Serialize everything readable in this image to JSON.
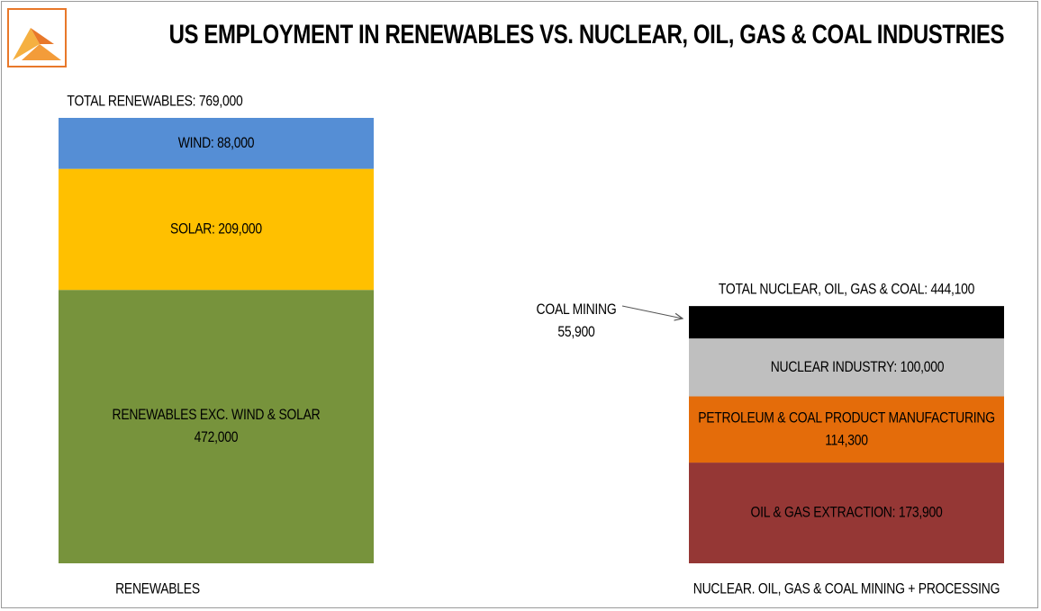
{
  "title": "US EMPLOYMENT IN RENEWABLES VS. NUCLEAR, OIL, GAS & COAL INDUSTRIES",
  "chart_data": {
    "type": "bar",
    "stacked": true,
    "categories": [
      "RENEWABLES",
      "NUCLEAR. OIL, GAS & COAL MINING + PROCESSING"
    ],
    "totals": [
      {
        "label": "TOTAL RENEWABLES:  769,000",
        "value": 769000
      },
      {
        "label": "TOTAL NUCLEAR, OIL, GAS & COAL: 444,100",
        "value": 444100
      }
    ],
    "ylim": [
      0,
      769000
    ],
    "grid": false,
    "legend": "none",
    "stacks": [
      {
        "category": "RENEWABLES",
        "segments": [
          {
            "label": [
              "RENEWABLES EXC. WIND & SOLAR",
              "472,000"
            ],
            "value": 472000,
            "color": "#77933c"
          },
          {
            "label": [
              "SOLAR: 209,000"
            ],
            "value": 209000,
            "color": "#ffc000"
          },
          {
            "label": [
              "WIND: 88,000"
            ],
            "value": 88000,
            "color": "#558ed5"
          }
        ]
      },
      {
        "category": "NUCLEAR. OIL, GAS & COAL MINING + PROCESSING",
        "segments": [
          {
            "label": [
              "OIL & GAS EXTRACTION:  173,900"
            ],
            "value": 173900,
            "color": "#953735"
          },
          {
            "label": [
              "PETROLEUM & COAL PRODUCT MANUFACTURING",
              "114,300"
            ],
            "value": 114300,
            "color": "#e46c0a"
          },
          {
            "label": [
              "NUCLEAR INDUSTRY:  100,000"
            ],
            "value": 100000,
            "color": "#bfbfbf"
          },
          {
            "label": [],
            "value": 55900,
            "color": "#000000"
          }
        ]
      }
    ],
    "annotations": [
      {
        "text": [
          "COAL MINING",
          "55,900"
        ],
        "points_to": "black segment of second bar"
      }
    ]
  }
}
